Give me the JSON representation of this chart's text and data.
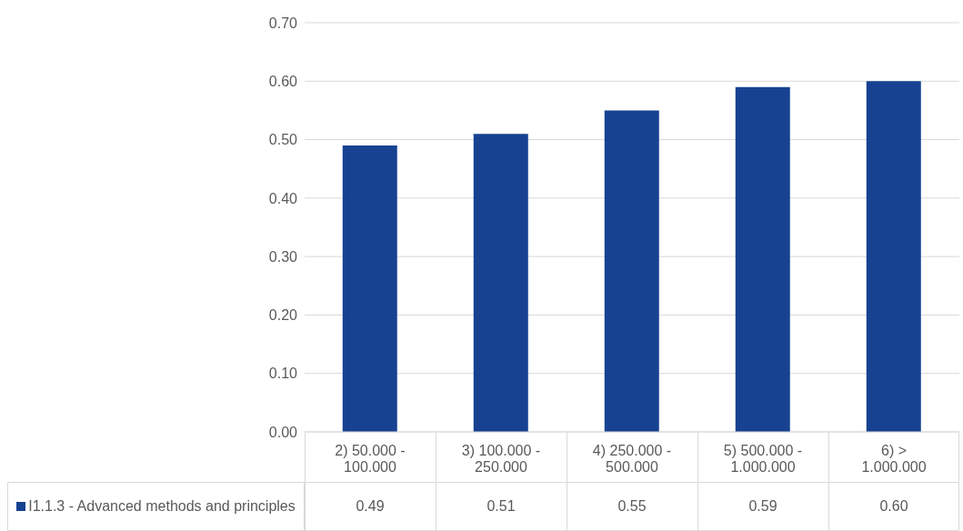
{
  "chart_data": {
    "type": "bar",
    "categories": [
      "2) 50.000 - 100.000",
      "3) 100.000 - 250.000",
      "4) 250.000 - 500.000",
      "5) 500.000 - 1.000.000",
      "6) > 1.000.000"
    ],
    "series": [
      {
        "name": "I1.1.3 - Advanced methods and principles",
        "color": "#174291",
        "values": [
          0.49,
          0.51,
          0.55,
          0.59,
          0.6
        ],
        "value_labels": [
          "0.49",
          "0.51",
          "0.55",
          "0.59",
          "0.60"
        ]
      }
    ],
    "ylim": [
      0,
      0.7
    ],
    "yticks": [
      {
        "value": 0,
        "label": "0.00"
      },
      {
        "value": 0.1,
        "label": "0.10"
      },
      {
        "value": 0.2,
        "label": "0.20"
      },
      {
        "value": 0.3,
        "label": "0.30"
      },
      {
        "value": 0.4,
        "label": "0.40"
      },
      {
        "value": 0.5,
        "label": "0.50"
      },
      {
        "value": 0.6,
        "label": "0.60"
      },
      {
        "value": 0.7,
        "label": "0.70"
      }
    ],
    "grid": "y",
    "legend": "bottom"
  }
}
